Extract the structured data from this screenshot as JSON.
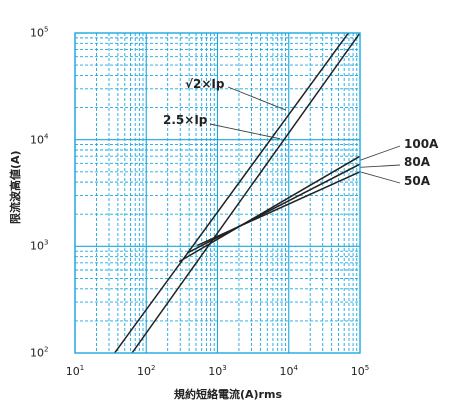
{
  "chart_data": {
    "type": "line",
    "xlabel": "規約短絡電流(A)rms",
    "ylabel": "限流波高値(A)",
    "x_scale": "log",
    "y_scale": "log",
    "xlim": [
      10,
      100000
    ],
    "ylim": [
      100,
      100000
    ],
    "grid": true,
    "grid_color": "#1aa7e0",
    "line_color": "#222222",
    "x_ticks": [
      {
        "base": "10",
        "exp": "1",
        "value": 10
      },
      {
        "base": "10",
        "exp": "2",
        "value": 100
      },
      {
        "base": "10",
        "exp": "3",
        "value": 1000
      },
      {
        "base": "10",
        "exp": "4",
        "value": 10000
      },
      {
        "base": "10",
        "exp": "5",
        "value": 100000
      }
    ],
    "y_ticks": [
      {
        "base": "10",
        "exp": "2",
        "value": 100
      },
      {
        "base": "10",
        "exp": "3",
        "value": 1000
      },
      {
        "base": "10",
        "exp": "4",
        "value": 10000
      },
      {
        "base": "10",
        "exp": "5",
        "value": 100000
      }
    ],
    "series": [
      {
        "name": "√2×Ip",
        "x": [
          36,
          100000
        ],
        "y": [
          100,
          141000
        ]
      },
      {
        "name": "2.5×Ip",
        "x": [
          63,
          100000
        ],
        "y": [
          100,
          100000
        ]
      },
      {
        "name": "100A",
        "x": [
          290,
          100000
        ],
        "y": [
          720,
          7000
        ]
      },
      {
        "name": "80A",
        "x": [
          380,
          100000
        ],
        "y": [
          870,
          5900
        ]
      },
      {
        "name": "50A",
        "x": [
          520,
          100000
        ],
        "y": [
          1020,
          5000
        ]
      }
    ],
    "annotations": [
      {
        "text": "√2×Ip",
        "series": "√2×Ip"
      },
      {
        "text": "2.5×Ip",
        "series": "2.5×Ip"
      },
      {
        "text": "100A",
        "series": "100A"
      },
      {
        "text": "80A",
        "series": "80A"
      },
      {
        "text": "50A",
        "series": "50A"
      }
    ]
  }
}
